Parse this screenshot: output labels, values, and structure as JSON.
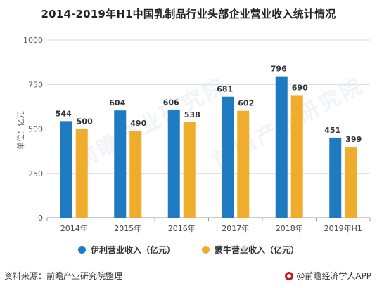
{
  "chart_data": {
    "type": "bar",
    "title": "2014-2019年H1中国乳制品行业头部企业营业收入统计情况",
    "ylabel": "单位：亿元",
    "xlabel": "",
    "categories": [
      "2014年",
      "2015年",
      "2016年",
      "2017年",
      "2018年",
      "2019年H1"
    ],
    "series": [
      {
        "name": "伊利营业收入（亿元）",
        "color": "#1f7bc1",
        "values": [
          544,
          604,
          606,
          681,
          796,
          451
        ]
      },
      {
        "name": "蒙牛营业收入（亿元）",
        "color": "#f0ad2d",
        "values": [
          500,
          490,
          538,
          602,
          690,
          399
        ]
      }
    ],
    "ylim": [
      0,
      1000
    ],
    "yticks": [
      0,
      250,
      500,
      750,
      1000
    ],
    "grid": true,
    "legend": "bottom"
  },
  "footer": {
    "source": "资料来源：前瞻产业研究院整理",
    "credit": "@前瞻经济学人APP"
  },
  "watermark": "前瞻产业研究院"
}
